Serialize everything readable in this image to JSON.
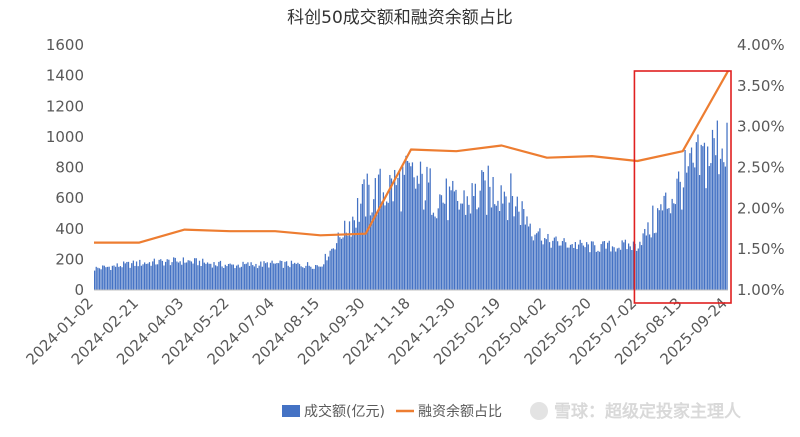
{
  "chart_data": {
    "type": "bar+line",
    "title": "科创50成交额和融资余额占比",
    "categories": [
      "2024-01-02",
      "2024-02-21",
      "2024-04-03",
      "2024-05-22",
      "2024-07-04",
      "2024-08-15",
      "2024-09-30",
      "2024-11-18",
      "2024-12-30",
      "2025-02-19",
      "2025-04-02",
      "2025-05-20",
      "2025-07-02",
      "2025-08-13",
      "2025-09-24"
    ],
    "y_left": {
      "ticks": [
        "0",
        "200",
        "400",
        "600",
        "800",
        "1000",
        "1200",
        "1400",
        "1600"
      ],
      "ylim": [
        0,
        1600
      ]
    },
    "y_right": {
      "ticks": [
        "1.00%",
        "1.50%",
        "2.00%",
        "2.50%",
        "3.00%",
        "3.50%",
        "4.00%"
      ],
      "ylim": [
        1.0,
        4.0
      ]
    },
    "series": [
      {
        "name": "成交额(亿元)",
        "kind": "bar",
        "color": "#4472c4",
        "values": [
          140,
          175,
          190,
          160,
          170,
          160,
          600,
          720,
          550,
          680,
          320,
          280,
          290,
          700,
          1000
        ]
      },
      {
        "name": "融资余额占比",
        "kind": "line",
        "color": "#ed7d31",
        "values": [
          1.58,
          1.58,
          1.74,
          1.72,
          1.72,
          1.67,
          1.69,
          2.72,
          2.7,
          2.77,
          2.62,
          2.64,
          2.58,
          2.7,
          3.68
        ]
      }
    ],
    "grid": false,
    "legend": "bottom",
    "highlight": {
      "from_category": "2025-07-02",
      "to_category": "2025-09-24",
      "color": "#e02020"
    }
  },
  "watermark": "雪球：超级定投家主理人"
}
